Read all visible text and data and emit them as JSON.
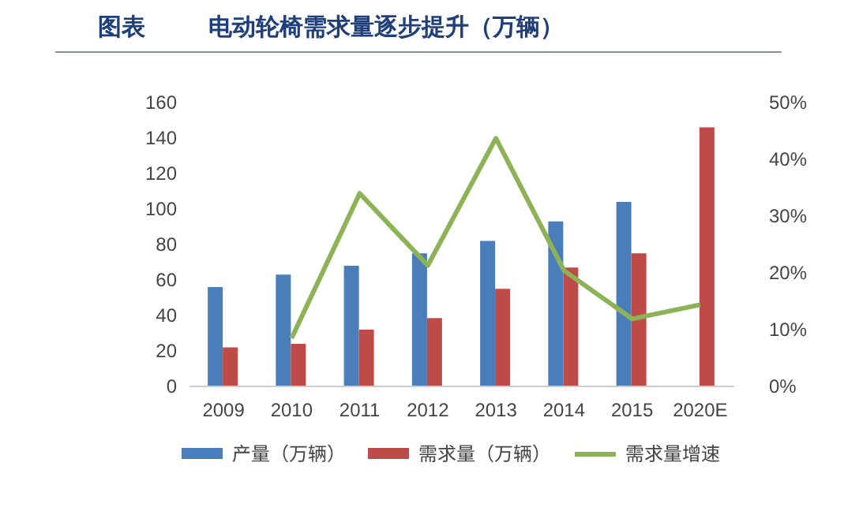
{
  "chart_data": {
    "type": "bar",
    "title": "图表",
    "subtitle": "电动轮椅需求量逐步提升（万辆）",
    "categories": [
      "2009",
      "2010",
      "2011",
      "2012",
      "2013",
      "2014",
      "2015",
      "2020E"
    ],
    "series": [
      {
        "name": "产量（万辆）",
        "color": "#4a7ebb",
        "values": [
          56,
          63,
          68,
          75,
          82,
          93,
          104,
          null
        ]
      },
      {
        "name": "需求量（万辆）",
        "color": "#be4b48",
        "values": [
          22,
          24,
          32,
          38.5,
          55,
          67,
          75,
          146
        ]
      },
      {
        "name": "需求量增速",
        "color": "#8db356",
        "type": "line",
        "axis": "y2",
        "values": [
          null,
          8.5,
          34,
          21.3,
          43.7,
          20.4,
          11.9,
          14.4
        ]
      }
    ],
    "ylim": [
      0,
      160
    ],
    "yticks": [
      0,
      20,
      40,
      60,
      80,
      100,
      120,
      140,
      160
    ],
    "y2lim": [
      0,
      50
    ],
    "y2ticks": [
      {
        "value": 0,
        "label": "0%"
      },
      {
        "value": 10,
        "label": "10%"
      },
      {
        "value": 20,
        "label": "20%"
      },
      {
        "value": 30,
        "label": "30%"
      },
      {
        "value": 40,
        "label": "40%"
      },
      {
        "value": 50,
        "label": "50%"
      }
    ],
    "legend": "bottom"
  }
}
